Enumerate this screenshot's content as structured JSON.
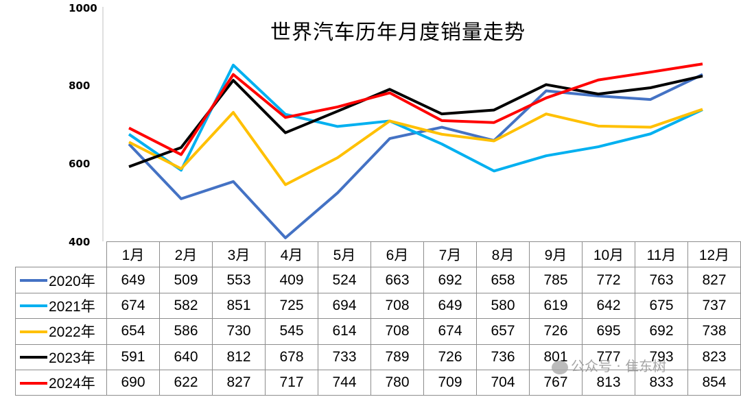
{
  "chart_data": {
    "type": "line",
    "title": "世界汽车历年月度销量走势",
    "categories": [
      "1月",
      "2月",
      "3月",
      "4月",
      "5月",
      "6月",
      "7月",
      "8月",
      "9月",
      "10月",
      "11月",
      "12月"
    ],
    "ylim": [
      400,
      1000
    ],
    "yticks": [
      "400",
      "600",
      "800",
      "1000"
    ],
    "grid": false,
    "legend": "data-table-left",
    "series": [
      {
        "name": "2020年",
        "color": "#4472C4",
        "values": [
          649,
          509,
          553,
          409,
          524,
          663,
          692,
          658,
          785,
          772,
          763,
          827
        ]
      },
      {
        "name": "2021年",
        "color": "#00B0F0",
        "values": [
          674,
          582,
          851,
          725,
          694,
          708,
          649,
          580,
          619,
          642,
          675,
          737
        ]
      },
      {
        "name": "2022年",
        "color": "#FFC000",
        "values": [
          654,
          586,
          730,
          545,
          614,
          708,
          674,
          657,
          726,
          695,
          692,
          738
        ]
      },
      {
        "name": "2023年",
        "color": "#000000",
        "values": [
          591,
          640,
          812,
          678,
          733,
          789,
          726,
          736,
          801,
          777,
          793,
          823
        ]
      },
      {
        "name": "2024年",
        "color": "#FF0000",
        "values": [
          690,
          622,
          827,
          717,
          744,
          780,
          709,
          704,
          767,
          813,
          833,
          854
        ]
      }
    ]
  },
  "watermark": "公众号 · 隹东树"
}
